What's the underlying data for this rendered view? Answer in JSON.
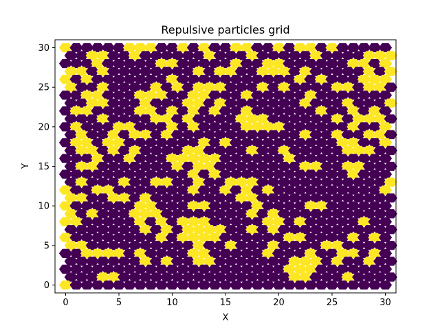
{
  "chart_data": {
    "type": "heatmap",
    "title": "Repulsive particles grid",
    "xlabel": "X",
    "ylabel": "Y",
    "xlim": [
      -1,
      31
    ],
    "ylim": [
      -1,
      31
    ],
    "xticks": [
      0,
      5,
      10,
      15,
      20,
      25,
      30
    ],
    "yticks": [
      0,
      5,
      10,
      15,
      20,
      25,
      30
    ],
    "grid": false,
    "cell_shape": "hexagon",
    "value_colors": {
      "0": "#440154",
      "1": "#fde725"
    },
    "rows": [
      "1000001110010100110010110100000",
      "0011001000000100010000010000111",
      "0001000001100000100110000001101",
      "1101000000001011001110100000101",
      "1010000000100000000000101000111",
      "1001000010101110001010000110110",
      "0011000111001100010000010000000",
      "0011000100011010000000100010001",
      "0110000110101010010000001001010",
      "0001000011010000111000000101110",
      "0100011000101000011110000001001",
      "0100101101000000000000100100110",
      "0110110000000101000000000011001",
      "0110101000011000010010000011100",
      "0001001000111110000001000000000",
      "0110000000101100000000110011000",
      "0000000000001010000000000001000",
      "0100010011001001110000000000001",
      "1001100000001001010100000000001",
      "1100110100000000110000000000000",
      "1000000110001100001000011000000",
      "1010001110000000010100000000000",
      "1100000101011100000110100000100",
      "0000000101011110010100000000000",
      "1000000001011110000001100001010",
      "1100000000001001000100001100000",
      "0011110100001100000100010011010",
      "0000000101001100000001110100100",
      "0000000000000000000001110000000",
      "0001100000000000000001100010000",
      "1000000000000000000000000000000"
    ]
  }
}
